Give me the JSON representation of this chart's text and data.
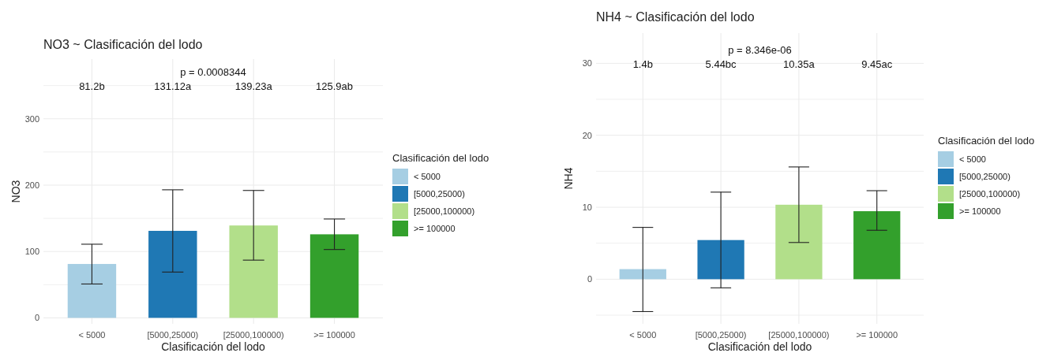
{
  "chart_data": [
    {
      "type": "bar",
      "title": "NO3 ~ Clasificación del lodo",
      "xlabel": "Clasificación del lodo",
      "ylabel": "NO3",
      "legend_title": "Clasificación del lodo",
      "categories": [
        "< 5000",
        "[5000,25000)",
        "[25000,100000)",
        ">= 100000"
      ],
      "series": [
        {
          "name": "< 5000",
          "color": "#a6cee3",
          "values": [
            81.2,
            null,
            null,
            null
          ],
          "errors": [
            [
              51,
              111
            ],
            null,
            null,
            null
          ]
        },
        {
          "name": "[5000,25000)",
          "color": "#1f78b4",
          "values": [
            null,
            131.12,
            null,
            null
          ],
          "errors": [
            null,
            [
              69,
              193
            ],
            null,
            null
          ]
        },
        {
          "name": "[25000,100000)",
          "color": "#b2df8a",
          "values": [
            null,
            null,
            139.23,
            null
          ],
          "errors": [
            null,
            null,
            [
              87,
              192
            ],
            null
          ]
        },
        {
          "name": ">= 100000",
          "color": "#33a02c",
          "values": [
            null,
            null,
            null,
            125.9
          ],
          "errors": [
            null,
            null,
            null,
            [
              103,
              149
            ]
          ]
        }
      ],
      "ylim": [
        -9,
        390
      ],
      "yticks": [
        0,
        {
          "value": 50,
          "label": null
        },
        100,
        {
          "value": 150,
          "label": null
        },
        200,
        {
          "value": 250,
          "label": null
        },
        300,
        {
          "value": 350,
          "label": null
        }
      ],
      "grid": true,
      "legend": "right",
      "annotations": [
        "p = 0.0008344",
        "81.2b",
        "131.12a",
        "139.23a",
        "125.9ab"
      ]
    },
    {
      "type": "bar",
      "title": "NH4 ~ Clasificación del lodo",
      "xlabel": "Clasificación del lodo",
      "ylabel": "NH4",
      "legend_title": "Clasificación del lodo",
      "categories": [
        "< 5000",
        "[5000,25000)",
        "[25000,100000)",
        ">= 100000"
      ],
      "series": [
        {
          "name": "< 5000",
          "color": "#a6cee3",
          "values": [
            1.4,
            null,
            null,
            null
          ],
          "errors": [
            [
              -4.5,
              7.2
            ],
            null,
            null,
            null
          ]
        },
        {
          "name": "[5000,25000)",
          "color": "#1f78b4",
          "values": [
            null,
            5.44,
            null,
            null
          ],
          "errors": [
            null,
            [
              -1.2,
              12.1
            ],
            null,
            null
          ]
        },
        {
          "name": "[25000,100000)",
          "color": "#b2df8a",
          "values": [
            null,
            null,
            10.35,
            null
          ],
          "errors": [
            null,
            null,
            [
              5.1,
              15.6
            ],
            null
          ]
        },
        {
          "name": ">= 100000",
          "color": "#33a02c",
          "values": [
            null,
            null,
            null,
            9.45
          ],
          "errors": [
            null,
            null,
            null,
            [
              6.8,
              12.3
            ]
          ]
        }
      ],
      "ylim": [
        -6.2,
        34.2
      ],
      "yticks": [
        {
          "value": -5,
          "label": null
        },
        0,
        {
          "value": 5,
          "label": null
        },
        10,
        {
          "value": 15,
          "label": null
        },
        20,
        {
          "value": 25,
          "label": null
        },
        30
      ],
      "grid": true,
      "legend": "right",
      "annotations": [
        "p = 8.346e-06",
        "1.4b",
        "5.44bc",
        "10.35a",
        "9.45ac"
      ]
    }
  ]
}
